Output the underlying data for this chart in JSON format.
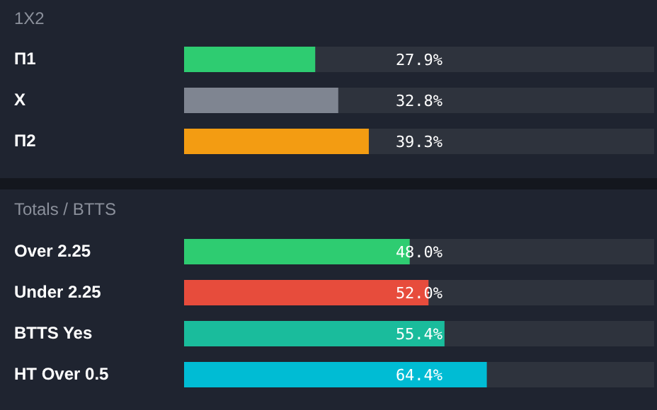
{
  "chart_data": [
    {
      "type": "bar",
      "orientation": "horizontal",
      "title": "1X2",
      "categories": [
        "П1",
        "X",
        "П2"
      ],
      "values": [
        27.9,
        32.8,
        39.3
      ],
      "colors": [
        "#2ecc71",
        "#7f8591",
        "#f39c12"
      ],
      "value_labels": [
        "27.9%",
        "32.8%",
        "39.3%"
      ],
      "xlim": [
        0,
        100
      ],
      "tick_labels": "y"
    },
    {
      "type": "bar",
      "orientation": "horizontal",
      "title": "Totals / BTTS",
      "categories": [
        "Over 2.25",
        "Under 2.25",
        "BTTS Yes",
        "HT Over 0.5"
      ],
      "values": [
        48.0,
        52.0,
        55.4,
        64.4
      ],
      "colors": [
        "#2ecc71",
        "#e74c3c",
        "#1abc9c",
        "#00bcd4"
      ],
      "value_labels": [
        "48.0%",
        "52.0%",
        "55.4%",
        "64.4%"
      ],
      "xlim": [
        0,
        100
      ],
      "tick_labels": "y"
    }
  ]
}
